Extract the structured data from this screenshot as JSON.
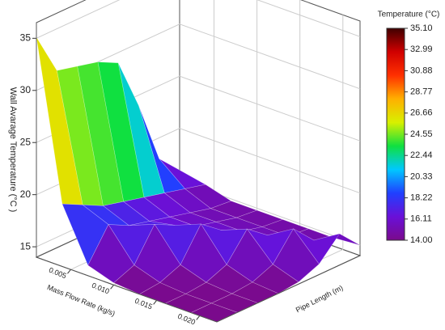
{
  "chart_data": {
    "type": "surface3d",
    "xlabel": "Mass Flow Rate (kg/s)",
    "ylabel": "Pipe Length (m)",
    "zlabel": "Wall Avarage Temperature (°C )",
    "x": [
      0.001,
      0.004,
      0.007,
      0.01,
      0.013,
      0.016,
      0.019,
      0.022
    ],
    "y": [
      0,
      10,
      20,
      30,
      40,
      50,
      60,
      70
    ],
    "z": [
      [
        35.1,
        31,
        30.5,
        30,
        29,
        24,
        18,
        16
      ],
      [
        20,
        19,
        18,
        17.5,
        17,
        16.5,
        16,
        15.5
      ],
      [
        15,
        18,
        17,
        16.5,
        16,
        15.5,
        15,
        14.8
      ],
      [
        14.2,
        15,
        18,
        17,
        16,
        15.5,
        15,
        14.8
      ],
      [
        14,
        14.2,
        15,
        18,
        16.5,
        15.5,
        15,
        14.8
      ],
      [
        14,
        14,
        14.2,
        15,
        17.5,
        16,
        15,
        14.8
      ],
      [
        14,
        14,
        14,
        14.2,
        15,
        17.5,
        15.5,
        14.8
      ],
      [
        14,
        14,
        14,
        14,
        14.2,
        15,
        17,
        15
      ]
    ],
    "xlim": [
      0.001,
      0.022
    ],
    "ylim": [
      0,
      70
    ],
    "zlim": [
      14,
      36.5
    ],
    "xticks": [
      0.005,
      {
        "value": 0.01,
        "label": "0.010"
      },
      0.015,
      {
        "value": 0.02,
        "label": "0.020"
      }
    ],
    "zticks": [
      15,
      20,
      25,
      30,
      35
    ],
    "grid": true,
    "colorbar": {
      "title": "Temperature (°C)",
      "clim": [
        14,
        35.1
      ],
      "ticks": [
        {
          "value": 35.1,
          "label": "35.10"
        },
        32.99,
        30.88,
        28.77,
        26.66,
        24.55,
        22.44,
        20.33,
        18.22,
        16.11,
        {
          "value": 14,
          "label": "14.00"
        }
      ],
      "colors": [
        "#7a0a8c",
        "#6a10d8",
        "#2040ff",
        "#00c8ff",
        "#10e040",
        "#d8f000",
        "#ffb000",
        "#ff3000",
        "#d00000",
        "#400000"
      ]
    }
  }
}
